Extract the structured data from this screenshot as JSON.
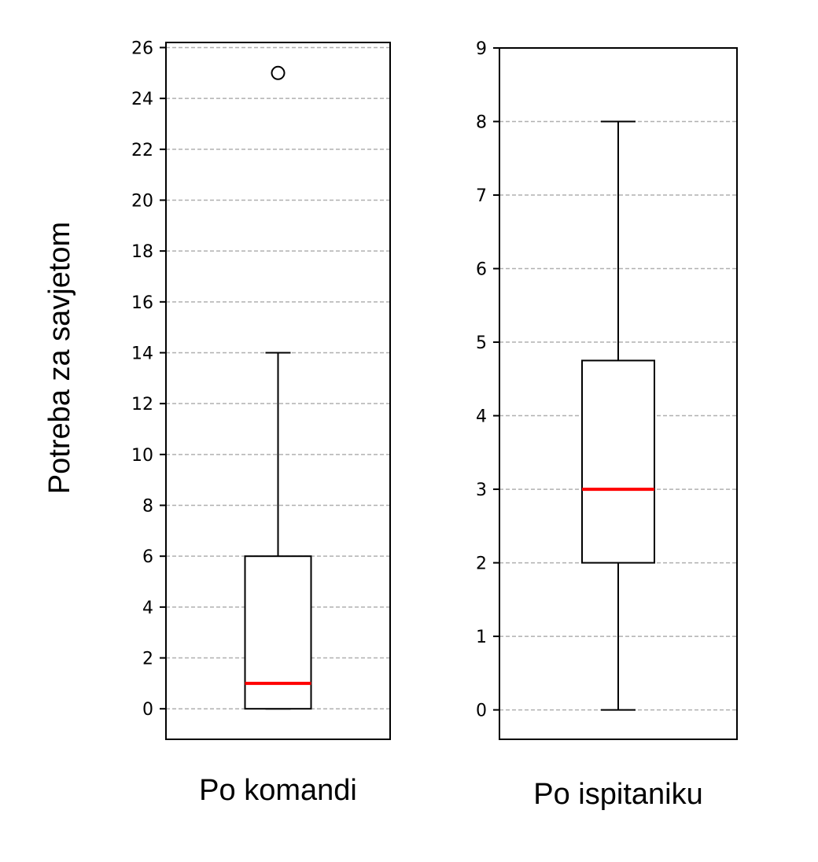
{
  "chart_data": [
    {
      "type": "box",
      "xlabel": "Po komandi",
      "ylabel": "Potreba za savjetom",
      "ylim": [
        -1.2,
        26.2
      ],
      "yticks": [
        "0",
        "2",
        "4",
        "6",
        "8",
        "10",
        "12",
        "14",
        "16",
        "18",
        "20",
        "22",
        "24",
        "26"
      ],
      "ytick_values": [
        0,
        2,
        4,
        6,
        8,
        10,
        12,
        14,
        16,
        18,
        20,
        22,
        24,
        26
      ],
      "grid": "horizontal dashed",
      "box": {
        "whisker_low": 0,
        "q1": 0,
        "median": 1,
        "q3": 6,
        "whisker_high": 14,
        "outliers": [
          25
        ]
      },
      "colors": {
        "median": "#ff0000",
        "box": "#000000",
        "grid": "#b0b0b0"
      }
    },
    {
      "type": "box",
      "xlabel": "Po ispitaniku",
      "ylabel": "",
      "ylim": [
        -0.4,
        9
      ],
      "yticks": [
        "0",
        "1",
        "2",
        "3",
        "4",
        "5",
        "6",
        "7",
        "8",
        "9"
      ],
      "ytick_values": [
        0,
        1,
        2,
        3,
        4,
        5,
        6,
        7,
        8,
        9
      ],
      "grid": "horizontal dashed",
      "box": {
        "whisker_low": 0,
        "q1": 2,
        "median": 3,
        "q3": 4.75,
        "whisker_high": 8,
        "outliers": []
      },
      "colors": {
        "median": "#ff0000",
        "box": "#000000",
        "grid": "#b0b0b0"
      }
    }
  ]
}
